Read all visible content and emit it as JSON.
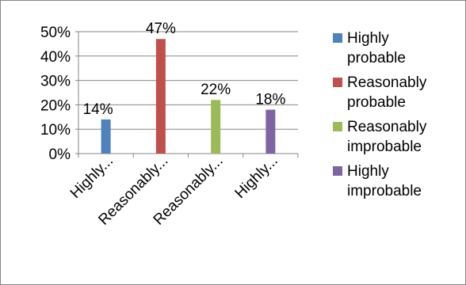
{
  "chart_data": {
    "type": "bar",
    "categories": [
      "Highly...",
      "Reasonably...",
      "Reasonably...",
      "Highly..."
    ],
    "values": [
      14,
      47,
      22,
      18
    ],
    "data_labels": [
      "14%",
      "47%",
      "22%",
      "18%"
    ],
    "series": [
      {
        "name": "Highly probable",
        "value": 14,
        "color": "#4F81BD"
      },
      {
        "name": "Reasonably probable",
        "value": 47,
        "color": "#C0504D"
      },
      {
        "name": "Reasonably improbable",
        "value": 22,
        "color": "#9BBB59"
      },
      {
        "name": "Highly improbable",
        "value": 18,
        "color": "#8064A2"
      }
    ],
    "y_ticks": [
      "0%",
      "10%",
      "20%",
      "30%",
      "40%",
      "50%"
    ],
    "ylim": [
      0,
      50
    ],
    "grid": true,
    "legend_position": "right"
  },
  "legend": {
    "items": [
      {
        "label": "Highly\nprobable",
        "color": "#4F81BD"
      },
      {
        "label": "Reasonably\nprobable",
        "color": "#C0504D"
      },
      {
        "label": "Reasonably\nimprobable",
        "color": "#9BBB59"
      },
      {
        "label": "Highly\nimprobable",
        "color": "#8064A2"
      }
    ]
  }
}
